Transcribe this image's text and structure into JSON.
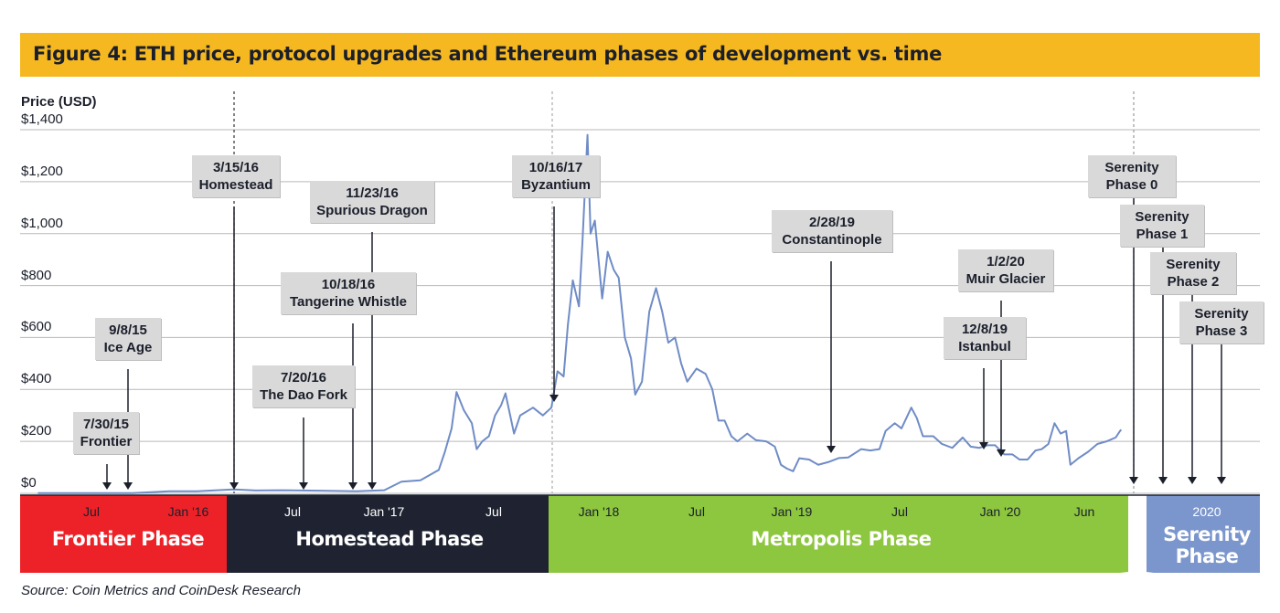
{
  "title": "Figure 4: ETH price, protocol upgrades  and Ethereum phases of development vs. time",
  "source": "Source: Coin Metrics and CoinDesk Research",
  "colors": {
    "title_bg": "#f6b820",
    "line": "#6f8cc6",
    "frontier": "#ed2228",
    "homestead": "#1f2331",
    "metropolis": "#8dc63f",
    "serenity": "#7b96cc",
    "callout": "#d9d9d9"
  },
  "chart_data": {
    "type": "line",
    "title": "Figure 4: ETH price, protocol upgrades  and Ethereum phases of development vs. time",
    "ylabel": "Price (USD)",
    "ylim": [
      0,
      1400
    ],
    "y_ticks": [
      "$0",
      "$200",
      "$400",
      "$600",
      "$800",
      "$1,000",
      "$1,200",
      "$1,400"
    ],
    "y_tick_values": [
      0,
      200,
      400,
      600,
      800,
      1000,
      1200,
      1400
    ],
    "x_range": [
      "2015-07-01",
      "2020-06-01"
    ],
    "x_tick_labels": [
      "Jul",
      "Jan '16",
      "Jul",
      "Jan '17",
      "Jul",
      "Jan '18",
      "Jul",
      "Jan '19",
      "Jul",
      "Jan '20",
      "Jun",
      "2020"
    ],
    "grid": true,
    "series": [
      {
        "name": "",
        "points": [
          [
            "2015-07-30",
            1
          ],
          [
            "2015-09-01",
            1
          ],
          [
            "2015-11-01",
            1
          ],
          [
            "2016-01-01",
            1
          ],
          [
            "2016-03-01",
            8
          ],
          [
            "2016-04-15",
            8
          ],
          [
            "2016-06-15",
            15
          ],
          [
            "2016-07-20",
            11
          ],
          [
            "2016-09-01",
            12
          ],
          [
            "2016-11-01",
            10
          ],
          [
            "2017-01-01",
            8
          ],
          [
            "2017-02-15",
            12
          ],
          [
            "2017-03-15",
            45
          ],
          [
            "2017-04-15",
            50
          ],
          [
            "2017-05-15",
            90
          ],
          [
            "2017-05-25",
            160
          ],
          [
            "2017-06-05",
            250
          ],
          [
            "2017-06-13",
            390
          ],
          [
            "2017-06-25",
            320
          ],
          [
            "2017-07-08",
            270
          ],
          [
            "2017-07-16",
            170
          ],
          [
            "2017-07-25",
            200
          ],
          [
            "2017-08-05",
            220
          ],
          [
            "2017-08-15",
            300
          ],
          [
            "2017-08-25",
            340
          ],
          [
            "2017-09-01",
            385
          ],
          [
            "2017-09-15",
            230
          ],
          [
            "2017-09-25",
            300
          ],
          [
            "2017-10-16",
            330
          ],
          [
            "2017-11-01",
            300
          ],
          [
            "2017-11-15",
            330
          ],
          [
            "2017-11-25",
            470
          ],
          [
            "2017-12-05",
            450
          ],
          [
            "2017-12-12",
            650
          ],
          [
            "2017-12-20",
            820
          ],
          [
            "2017-12-30",
            720
          ],
          [
            "2018-01-05",
            980
          ],
          [
            "2018-01-13",
            1380
          ],
          [
            "2018-01-18",
            1000
          ],
          [
            "2018-01-25",
            1050
          ],
          [
            "2018-02-06",
            750
          ],
          [
            "2018-02-15",
            930
          ],
          [
            "2018-02-25",
            860
          ],
          [
            "2018-03-05",
            830
          ],
          [
            "2018-03-15",
            600
          ],
          [
            "2018-03-25",
            520
          ],
          [
            "2018-04-01",
            380
          ],
          [
            "2018-04-12",
            430
          ],
          [
            "2018-04-24",
            700
          ],
          [
            "2018-05-05",
            790
          ],
          [
            "2018-05-15",
            700
          ],
          [
            "2018-05-25",
            580
          ],
          [
            "2018-06-05",
            600
          ],
          [
            "2018-06-15",
            500
          ],
          [
            "2018-06-25",
            430
          ],
          [
            "2018-07-10",
            480
          ],
          [
            "2018-07-25",
            460
          ],
          [
            "2018-08-05",
            400
          ],
          [
            "2018-08-15",
            280
          ],
          [
            "2018-08-25",
            280
          ],
          [
            "2018-09-05",
            220
          ],
          [
            "2018-09-15",
            200
          ],
          [
            "2018-10-01",
            230
          ],
          [
            "2018-10-15",
            205
          ],
          [
            "2018-11-01",
            200
          ],
          [
            "2018-11-15",
            180
          ],
          [
            "2018-11-25",
            110
          ],
          [
            "2018-12-05",
            95
          ],
          [
            "2018-12-15",
            85
          ],
          [
            "2018-12-25",
            135
          ],
          [
            "2019-01-10",
            130
          ],
          [
            "2019-01-25",
            110
          ],
          [
            "2019-02-10",
            120
          ],
          [
            "2019-02-28",
            136
          ],
          [
            "2019-03-15",
            138
          ],
          [
            "2019-04-05",
            170
          ],
          [
            "2019-04-20",
            165
          ],
          [
            "2019-05-05",
            170
          ],
          [
            "2019-05-15",
            240
          ],
          [
            "2019-05-30",
            270
          ],
          [
            "2019-06-10",
            250
          ],
          [
            "2019-06-26",
            330
          ],
          [
            "2019-07-05",
            290
          ],
          [
            "2019-07-15",
            220
          ],
          [
            "2019-08-01",
            220
          ],
          [
            "2019-08-15",
            190
          ],
          [
            "2019-09-01",
            175
          ],
          [
            "2019-09-18",
            215
          ],
          [
            "2019-10-01",
            180
          ],
          [
            "2019-10-15",
            175
          ],
          [
            "2019-10-28",
            185
          ],
          [
            "2019-11-10",
            185
          ],
          [
            "2019-11-25",
            150
          ],
          [
            "2019-12-08",
            150
          ],
          [
            "2019-12-20",
            130
          ],
          [
            "2020-01-02",
            130
          ],
          [
            "2020-01-15",
            165
          ],
          [
            "2020-01-25",
            170
          ],
          [
            "2020-02-05",
            190
          ],
          [
            "2020-02-15",
            270
          ],
          [
            "2020-02-25",
            230
          ],
          [
            "2020-03-05",
            240
          ],
          [
            "2020-03-12",
            110
          ],
          [
            "2020-03-25",
            135
          ],
          [
            "2020-04-10",
            160
          ],
          [
            "2020-04-25",
            190
          ],
          [
            "2020-05-10",
            200
          ],
          [
            "2020-05-25",
            215
          ],
          [
            "2020-06-01",
            240
          ],
          [
            "2020-06-03",
            245
          ]
        ]
      }
    ],
    "annotations": [
      {
        "date": "2015-07-30",
        "lines": [
          "7/30/15",
          "Frontier"
        ]
      },
      {
        "date": "2015-09-08",
        "lines": [
          "9/8/15",
          "Ice Age"
        ]
      },
      {
        "date": "2016-03-15",
        "lines": [
          "3/15/16",
          "Homestead"
        ]
      },
      {
        "date": "2016-07-20",
        "lines": [
          "7/20/16",
          "The Dao Fork"
        ]
      },
      {
        "date": "2016-10-18",
        "lines": [
          "10/18/16",
          "Tangerine Whistle"
        ]
      },
      {
        "date": "2016-11-23",
        "lines": [
          "11/23/16",
          "Spurious Dragon"
        ]
      },
      {
        "date": "2017-10-16",
        "lines": [
          "10/16/17",
          "Byzantium"
        ]
      },
      {
        "date": "2019-02-28",
        "lines": [
          "2/28/19",
          "Constantinople"
        ]
      },
      {
        "date": "2019-12-08",
        "lines": [
          "12/8/19",
          "Istanbul"
        ]
      },
      {
        "date": "2020-01-02",
        "lines": [
          "1/2/20",
          "Muir Glacier"
        ]
      },
      {
        "date": "",
        "lines": [
          "Serenity",
          "Phase 0"
        ]
      },
      {
        "date": "",
        "lines": [
          "Serenity",
          "Phase 1"
        ]
      },
      {
        "date": "",
        "lines": [
          "Serenity",
          "Phase 2"
        ]
      },
      {
        "date": "",
        "lines": [
          "Serenity",
          "Phase 3"
        ]
      }
    ],
    "phases": [
      {
        "name": "Frontier Phase",
        "start": "2015-07-01",
        "end": "2016-03-15"
      },
      {
        "name": "Homestead Phase",
        "start": "2016-03-15",
        "end": "2017-10-16"
      },
      {
        "name": "Metropolis Phase",
        "start": "2017-10-16",
        "end": "2020-06-01"
      },
      {
        "name": "Serenity Phase",
        "start": "2020",
        "end": ""
      }
    ]
  }
}
